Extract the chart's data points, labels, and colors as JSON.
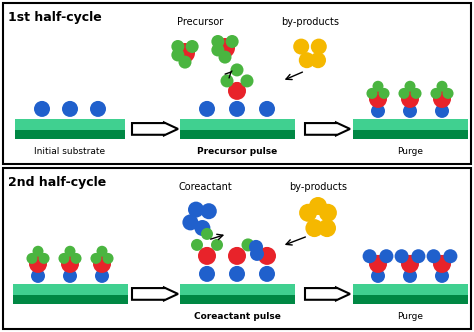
{
  "title_1": "1st half-cycle",
  "title_2": "2nd half-cycle",
  "label_initial": "Initial substrate",
  "label_precursor_pulse": "Precursor pulse",
  "label_purge_1": "Purge",
  "label_coreactant_pulse": "Coreactant pulse",
  "label_purge_2": "Purge",
  "label_precursor": "Precursor",
  "label_byproducts": "by-products",
  "label_coreactant": "Coreactant",
  "color_red": "#e8232a",
  "color_green": "#4ab540",
  "color_blue": "#2060cc",
  "color_yellow": "#f5b800",
  "color_sub_light": "#40d090",
  "color_sub_dark": "#008844",
  "color_bg": "#ffffff",
  "color_border": "#222222"
}
